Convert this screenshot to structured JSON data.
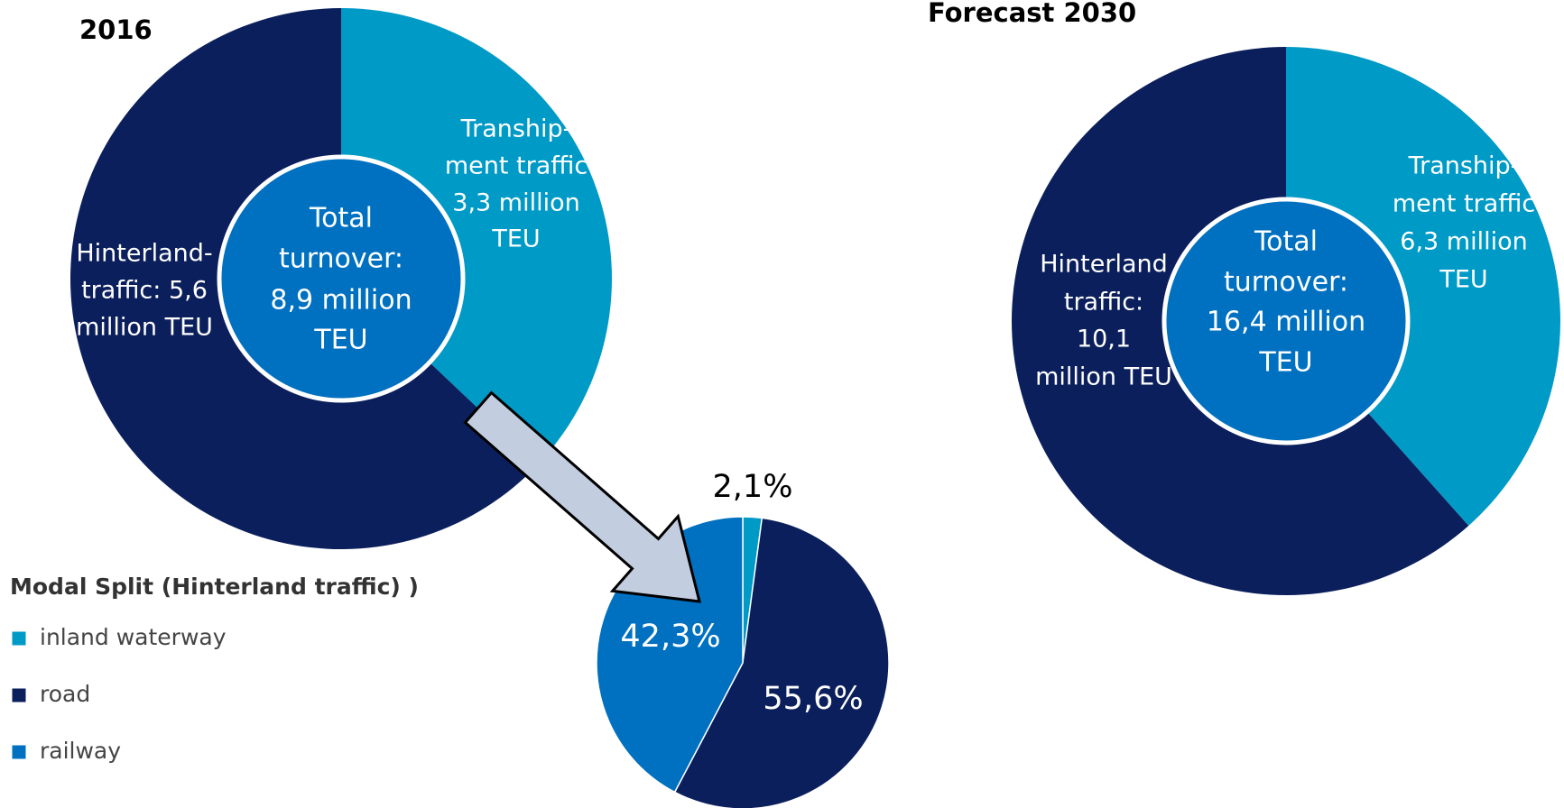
{
  "chart_data": [
    {
      "type": "donut",
      "title": "2016",
      "categories": [
        "Transhipment traffic",
        "Hinterland traffic"
      ],
      "values": [
        3.3,
        5.6
      ],
      "value_labels": [
        [
          "Tranship-",
          "ment traffic",
          "3,3 million",
          "TEU"
        ],
        [
          "Hinterland-",
          "traffic: 5,6",
          "million TEU"
        ]
      ],
      "colors": [
        "#009ac7",
        "#0b1f5c"
      ],
      "center_label": [
        "Total",
        "turnover:",
        "8,9 million",
        "TEU"
      ]
    },
    {
      "type": "pie",
      "title": "Modal Split (Hinterland traffic) )",
      "categories": [
        "inland waterway",
        "road",
        "railway"
      ],
      "values": [
        2.1,
        55.6,
        42.3
      ],
      "value_labels": [
        "2,1%",
        "55,6%",
        "42,3%"
      ],
      "colors": [
        "#009ac7",
        "#0b1f5c",
        "#0070c0"
      ],
      "legend": "left"
    },
    {
      "type": "donut",
      "title": "Forecast 2030",
      "categories": [
        "Transhipment traffic",
        "Hinterland traffic"
      ],
      "values": [
        6.3,
        10.1
      ],
      "value_labels": [
        [
          "Tranship-",
          "ment traffic",
          "6,3 million",
          "TEU"
        ],
        [
          "Hinterland",
          "traffic:",
          "10,1",
          "million TEU"
        ]
      ],
      "colors": [
        "#009ac7",
        "#0b1f5c"
      ],
      "center_label": [
        "Total",
        "turnover:",
        "16,4 million",
        "TEU"
      ]
    }
  ]
}
